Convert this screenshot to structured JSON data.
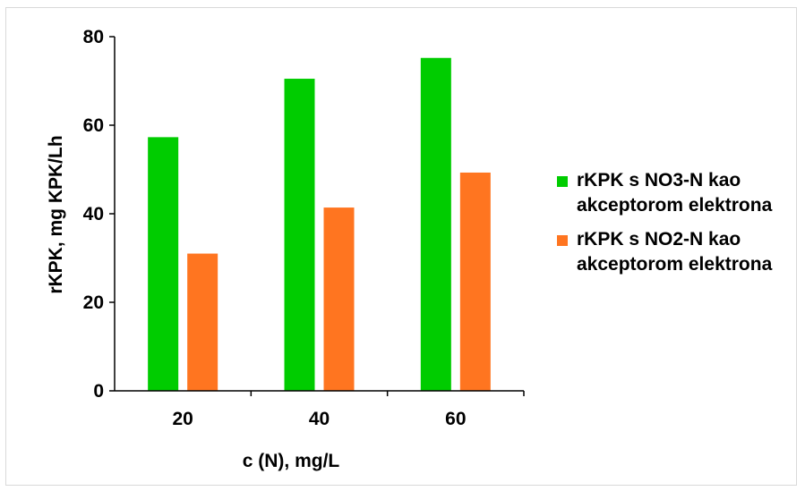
{
  "chart_data": {
    "type": "bar",
    "categories": [
      "20",
      "40",
      "60"
    ],
    "series": [
      {
        "name": "rKPK s NO3-N kao akceptorom elektrona",
        "values": [
          57.3,
          70.5,
          75.2
        ],
        "color": "#00cc00"
      },
      {
        "name": "rKPK s NO2-N kao akceptorom elektrona",
        "values": [
          31.0,
          41.4,
          49.3
        ],
        "color": "#ff7520"
      }
    ],
    "title": "",
    "xlabel": "c (N), mg/L",
    "ylabel": "rKPK, mg KPK/Lh",
    "ylim": [
      0,
      80
    ],
    "yticks": [
      "0",
      "20",
      "40",
      "60",
      "80"
    ],
    "grid": false,
    "legend_position": "right"
  }
}
